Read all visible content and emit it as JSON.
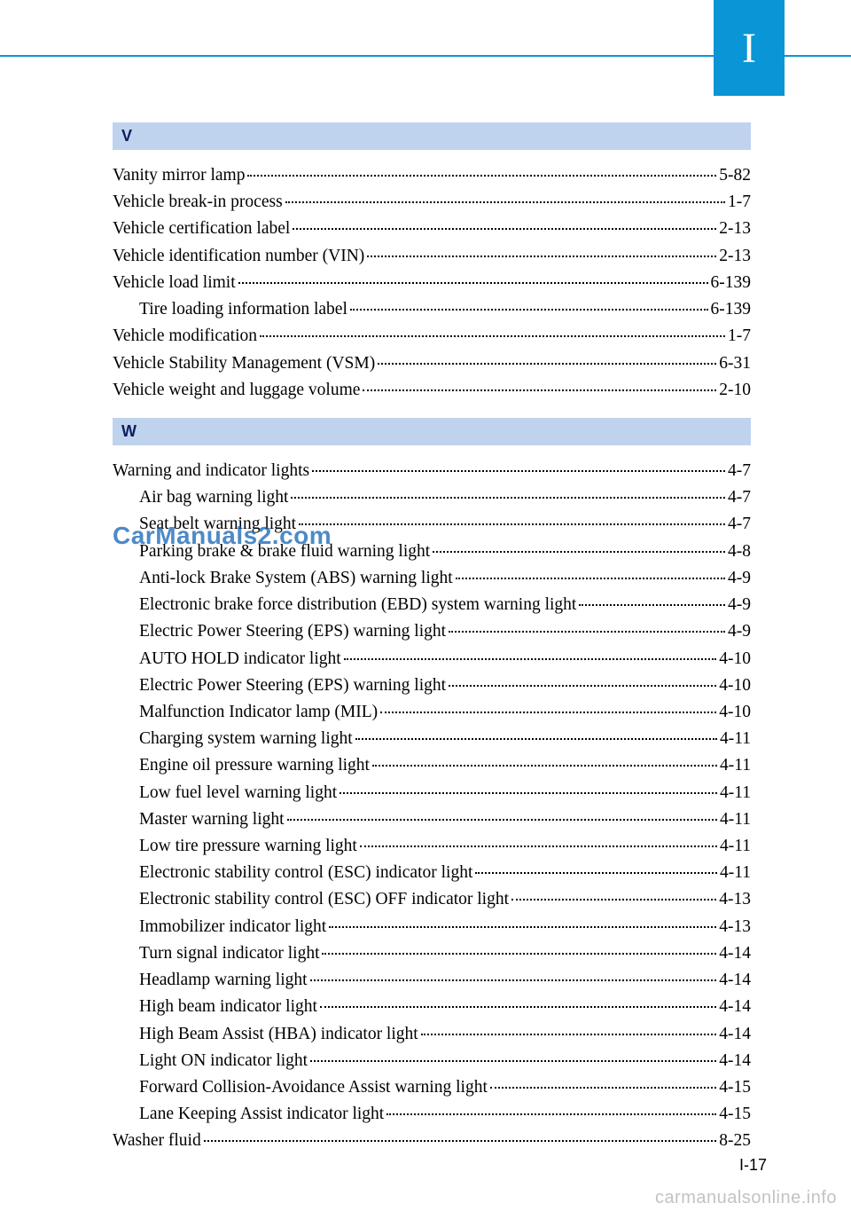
{
  "tab_letter": "I",
  "page_number": "I-17",
  "watermark": "CarManuals2.com",
  "footer_watermark": "carmanualsonline.info",
  "colors": {
    "accent": "#0a95d6",
    "section_bg": "#bfd3ee",
    "section_text": "#0c1f5e",
    "body_text": "#000000",
    "watermark_text": "#095eb2",
    "footer_text": "rgba(120,120,120,0.45)"
  },
  "sections": [
    {
      "letter": "V",
      "entries": [
        {
          "label": "Vanity mirror lamp",
          "page": "5-82",
          "indent": 0
        },
        {
          "label": "Vehicle break-in process",
          "page": "1-7",
          "indent": 0
        },
        {
          "label": "Vehicle certification label",
          "page": "2-13",
          "indent": 0
        },
        {
          "label": "Vehicle identification number (VIN)",
          "page": "2-13",
          "indent": 0
        },
        {
          "label": "Vehicle load limit",
          "page": "6-139",
          "indent": 0
        },
        {
          "label": "Tire loading information label",
          "page": "6-139",
          "indent": 1
        },
        {
          "label": "Vehicle modification",
          "page": "1-7",
          "indent": 0
        },
        {
          "label": "Vehicle Stability Management (VSM)",
          "page": "6-31",
          "indent": 0
        },
        {
          "label": "Vehicle weight and luggage volume",
          "page": "2-10",
          "indent": 0
        }
      ]
    },
    {
      "letter": "W",
      "entries": [
        {
          "label": "Warning and indicator lights",
          "page": "4-7",
          "indent": 0
        },
        {
          "label": "Air bag warning light",
          "page": "4-7",
          "indent": 1
        },
        {
          "label": "Seat belt warning light",
          "page": "4-7",
          "indent": 1
        },
        {
          "label": "Parking brake & brake fluid warning light",
          "page": "4-8",
          "indent": 1
        },
        {
          "label": "Anti-lock Brake System (ABS) warning light",
          "page": "4-9",
          "indent": 1
        },
        {
          "label": "Electronic brake force distribution (EBD) system warning light",
          "page": "4-9",
          "indent": 1
        },
        {
          "label": "Electric Power Steering (EPS) warning light",
          "page": "4-9",
          "indent": 1
        },
        {
          "label": "AUTO HOLD indicator light",
          "page": "4-10",
          "indent": 1
        },
        {
          "label": "Electric Power Steering (EPS) warning light",
          "page": "4-10",
          "indent": 1
        },
        {
          "label": "Malfunction Indicator lamp (MIL)",
          "page": "4-10",
          "indent": 1
        },
        {
          "label": "Charging system warning light ",
          "page": "4-11",
          "indent": 1
        },
        {
          "label": "Engine oil pressure warning light ",
          "page": "4-11",
          "indent": 1
        },
        {
          "label": "Low fuel level warning light",
          "page": "4-11",
          "indent": 1
        },
        {
          "label": "Master warning light",
          "page": "4-11",
          "indent": 1
        },
        {
          "label": "Low tire pressure warning light",
          "page": "4-11",
          "indent": 1
        },
        {
          "label": "Electronic stability control (ESC) indicator light",
          "page": "4-11",
          "indent": 1
        },
        {
          "label": "Electronic stability control (ESC) OFF indicator light",
          "page": "4-13",
          "indent": 1
        },
        {
          "label": "Immobilizer indicator light",
          "page": "4-13",
          "indent": 1
        },
        {
          "label": "Turn signal indicator light",
          "page": "4-14",
          "indent": 1
        },
        {
          "label": "Headlamp warning light",
          "page": "4-14",
          "indent": 1
        },
        {
          "label": "High beam indicator light",
          "page": "4-14",
          "indent": 1
        },
        {
          "label": "High Beam Assist (HBA) indicator light",
          "page": "4-14",
          "indent": 1
        },
        {
          "label": "Light ON indicator light",
          "page": "4-14",
          "indent": 1
        },
        {
          "label": "Forward Collision-Avoidance Assist warning light",
          "page": "4-15",
          "indent": 1
        },
        {
          "label": "Lane Keeping Assist indicator light",
          "page": "4-15",
          "indent": 1
        },
        {
          "label": "Washer fluid",
          "page": "8-25",
          "indent": 0
        }
      ]
    }
  ]
}
